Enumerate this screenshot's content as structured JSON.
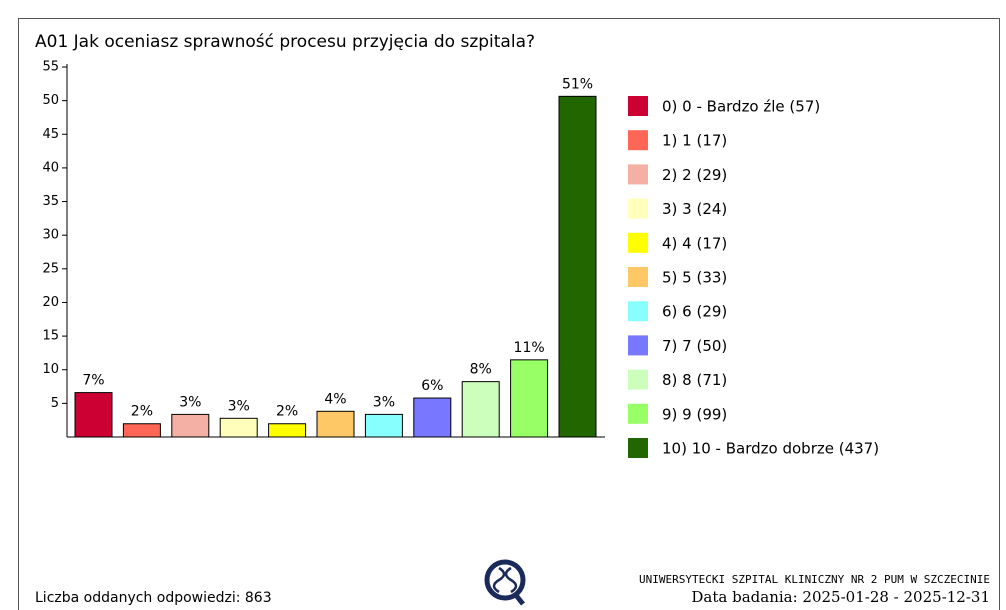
{
  "chart_data": {
    "type": "bar",
    "title": "A01 Jak oceniasz sprawność procesu przyjęcia do szpitala?",
    "categories": [
      "0) 0 - Bardzo źle (57)",
      "1) 1 (17)",
      "2) 2 (29)",
      "3) 3 (24)",
      "4) 4 (17)",
      "5) 5 (33)",
      "6) 6 (29)",
      "7) 7 (50)",
      "8) 8 (71)",
      "9) 9 (99)",
      "10) 10 - Bardzo dobrze (437)"
    ],
    "values": [
      6.6,
      1.97,
      3.36,
      2.78,
      1.97,
      3.82,
      3.36,
      5.79,
      8.23,
      11.47,
      50.64
    ],
    "value_labels": [
      "7%",
      "2%",
      "3%",
      "3%",
      "2%",
      "4%",
      "3%",
      "6%",
      "8%",
      "11%",
      "51%"
    ],
    "colors": [
      "#cc0033",
      "#ff6655",
      "#f5b0a5",
      "#ffffbb",
      "#ffff00",
      "#ffc866",
      "#88ffff",
      "#7777ff",
      "#ccffbb",
      "#99ff66",
      "#226600"
    ],
    "ylim": [
      0,
      55
    ],
    "yticks": [
      5,
      10,
      15,
      20,
      25,
      30,
      35,
      40,
      45,
      50,
      55
    ],
    "legend": "right",
    "responses": "Liczba oddanych odpowiedzi: 863",
    "institution": "UNIWERSYTECKI SZPITAL KLINICZNY NR 2 PUM W SZCZECINIE",
    "date": "Data badania: 2025-01-28 - 2025-12-31"
  }
}
